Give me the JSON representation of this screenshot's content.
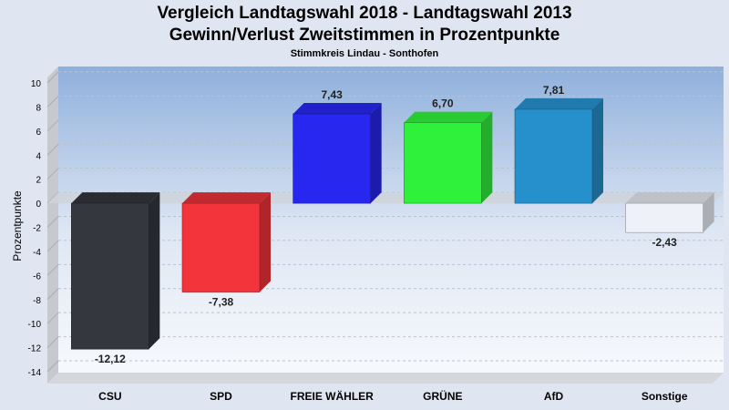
{
  "chart_data": {
    "type": "bar",
    "title": "Vergleich Landtagswahl 2018 - Landtagswahl 2013",
    "subtitle": "Gewinn/Verlust Zweitstimmen in Prozentpunkte",
    "subtitle2": "Stimmkreis Lindau - Sonthofen",
    "xlabel": "",
    "ylabel": "Prozentpunkte",
    "ylim": [
      -14,
      10
    ],
    "yticks": [
      10,
      8,
      6,
      4,
      2,
      0,
      -2,
      -4,
      -6,
      -8,
      -10,
      -12,
      -14
    ],
    "grid": true,
    "categories": [
      "CSU",
      "SPD",
      "FREIE WÄHLER",
      "GRÜNE",
      "AfD",
      "Sonstige"
    ],
    "values": [
      -12.12,
      -7.38,
      7.43,
      6.7,
      7.81,
      -2.43
    ],
    "value_labels": [
      "-12,12",
      "-7,38",
      "7,43",
      "6,70",
      "7,81",
      "-2,43"
    ],
    "colors": [
      "#34373d",
      "#f3343b",
      "#2727ef",
      "#2ff03a",
      "#2690cc",
      "#eef2f8"
    ]
  }
}
